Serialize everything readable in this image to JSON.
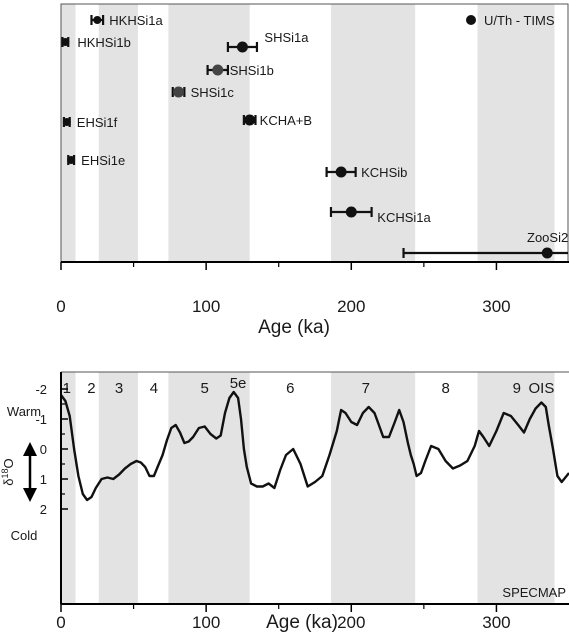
{
  "chart_data": [
    {
      "type": "scatter",
      "xlabel": "Age (ka)",
      "xlim": [
        0,
        350
      ],
      "x_ticks": [
        "0",
        "100",
        "200",
        "300"
      ],
      "x_tick_values": [
        0,
        100,
        200,
        300
      ],
      "grid": false,
      "legend": {
        "label": "U/Th - TIMS",
        "position": "top-right"
      },
      "shaded_bands": [
        [
          0,
          10
        ],
        [
          26,
          53
        ],
        [
          74,
          130
        ],
        [
          186,
          244
        ],
        [
          287,
          340
        ]
      ],
      "points": [
        {
          "name": "HKHSi1a",
          "x": 25,
          "xerr": [
            4,
            4
          ],
          "marker": "bar"
        },
        {
          "name": "HKHSi1b",
          "x": 3,
          "xerr": [
            2,
            2
          ],
          "marker": "bar"
        },
        {
          "name": "SHSi1a",
          "x": 125,
          "xerr": [
            10,
            10
          ],
          "marker": "dot"
        },
        {
          "name": "SHSi1b",
          "x": 108,
          "xerr": [
            7,
            7
          ],
          "marker": "dot"
        },
        {
          "name": "SHSi1c",
          "x": 81,
          "xerr": [
            4,
            4
          ],
          "marker": "dot"
        },
        {
          "name": "EHSi1f",
          "x": 4,
          "xerr": [
            2,
            2
          ],
          "marker": "bar"
        },
        {
          "name": "KCHA+B",
          "x": 130,
          "xerr": [
            4,
            4
          ],
          "marker": "dot"
        },
        {
          "name": "EHSi1e",
          "x": 7,
          "xerr": [
            2,
            2
          ],
          "marker": "bar"
        },
        {
          "name": "KCHSib",
          "x": 193,
          "xerr": [
            10,
            10
          ],
          "marker": "dot"
        },
        {
          "name": "KCHSi1a",
          "x": 200,
          "xerr": [
            14,
            14
          ],
          "marker": "dot"
        },
        {
          "name": "ZooSi2",
          "x": 335,
          "xerr": [
            99,
            15
          ],
          "marker": "dot"
        }
      ]
    },
    {
      "type": "line",
      "xlabel": "Age (ka)",
      "xlim": [
        0,
        350
      ],
      "x_ticks": [
        "0",
        "100",
        "200",
        "300"
      ],
      "x_tick_values": [
        0,
        100,
        200,
        300
      ],
      "ylim": [
        -2.2,
        2.6
      ],
      "y_ticks": [
        "-2",
        "-1",
        "0",
        "1",
        "2"
      ],
      "y_tick_values": [
        -2,
        -1,
        0,
        1,
        2
      ],
      "y_inverted": true,
      "y_annotations": {
        "top": "Warm",
        "bottom": "Cold",
        "axis_label": "δ",
        "axis_superscript": "18",
        "axis_suffix": "O"
      },
      "series_label": "SPECMAP",
      "grid": false,
      "stage_labels": [
        {
          "text": "1",
          "x": 4
        },
        {
          "text": "2",
          "x": 21
        },
        {
          "text": "3",
          "x": 40
        },
        {
          "text": "4",
          "x": 64
        },
        {
          "text": "5",
          "x": 99
        },
        {
          "text": "5e",
          "x": 122
        },
        {
          "text": "6",
          "x": 158
        },
        {
          "text": "7",
          "x": 210
        },
        {
          "text": "8",
          "x": 265
        },
        {
          "text": "9",
          "x": 314
        },
        {
          "text": "OIS",
          "x": 331
        }
      ],
      "x": [
        0,
        3,
        6,
        9,
        12,
        15,
        18,
        21,
        24,
        28,
        32,
        36,
        40,
        44,
        48,
        52,
        55,
        58,
        61,
        64,
        67,
        70,
        73,
        76,
        79,
        82,
        85,
        88,
        91,
        95,
        99,
        103,
        107,
        110,
        113,
        116,
        119,
        122,
        124,
        126,
        128,
        131,
        135,
        139,
        143,
        147,
        151,
        155,
        160,
        165,
        170,
        175,
        180,
        185,
        190,
        193,
        196,
        200,
        204,
        208,
        212,
        216,
        219,
        222,
        226,
        230,
        233,
        236,
        239,
        241,
        243,
        245,
        248,
        251,
        255,
        260,
        265,
        270,
        275,
        280,
        285,
        288,
        291,
        295,
        300,
        305,
        310,
        315,
        319,
        323,
        327,
        331,
        334,
        336,
        339,
        342,
        345,
        350
      ],
      "y": [
        -1.8,
        -1.6,
        -1.1,
        0.0,
        0.9,
        1.5,
        1.7,
        1.6,
        1.3,
        1.0,
        0.95,
        1.0,
        0.85,
        0.65,
        0.5,
        0.4,
        0.45,
        0.6,
        0.9,
        0.9,
        0.55,
        0.2,
        -0.3,
        -0.7,
        -0.8,
        -0.55,
        -0.2,
        -0.25,
        -0.4,
        -0.7,
        -0.75,
        -0.5,
        -0.35,
        -0.45,
        -1.2,
        -1.7,
        -1.9,
        -1.7,
        -1.0,
        0.0,
        0.6,
        1.15,
        1.25,
        1.25,
        1.15,
        1.3,
        0.7,
        0.2,
        0.0,
        0.5,
        1.25,
        1.1,
        0.9,
        0.2,
        -0.6,
        -1.3,
        -1.2,
        -0.9,
        -0.8,
        -1.2,
        -1.4,
        -1.2,
        -0.8,
        -0.4,
        -0.4,
        -0.9,
        -1.3,
        -0.9,
        -0.2,
        0.2,
        0.5,
        0.9,
        0.8,
        0.4,
        -0.1,
        0.0,
        0.4,
        0.65,
        0.55,
        0.4,
        -0.1,
        -0.6,
        -0.4,
        -0.1,
        -0.6,
        -1.2,
        -1.1,
        -0.8,
        -0.55,
        -1.0,
        -1.35,
        -1.55,
        -1.4,
        -0.8,
        0.0,
        0.9,
        1.1,
        0.8
      ]
    }
  ]
}
